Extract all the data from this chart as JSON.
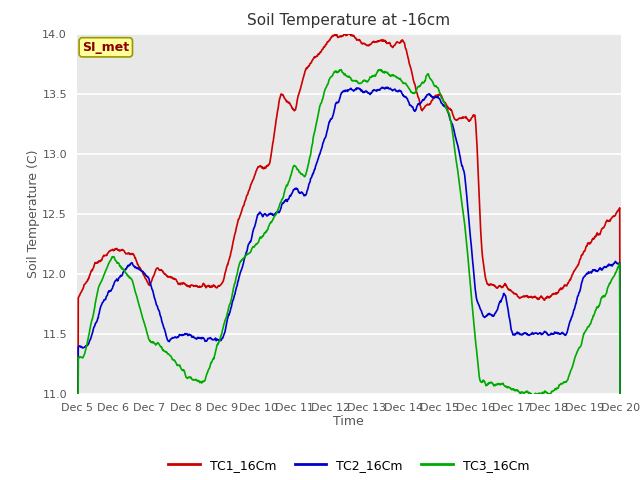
{
  "title": "Soil Temperature at -16cm",
  "xlabel": "Time",
  "ylabel": "Soil Temperature (C)",
  "ylim": [
    11.0,
    14.0
  ],
  "xlim": [
    0,
    15
  ],
  "yticks": [
    11.0,
    11.5,
    12.0,
    12.5,
    13.0,
    13.5,
    14.0
  ],
  "xtick_labels": [
    "Dec 5",
    "Dec 6",
    "Dec 7",
    "Dec 8",
    "Dec 9",
    "Dec 10",
    "Dec 11",
    "Dec 12",
    "Dec 13",
    "Dec 14",
    "Dec 15",
    "Dec 16",
    "Dec 17",
    "Dec 18",
    "Dec 19",
    "Dec 20"
  ],
  "plot_bg_color": "#e8e8e8",
  "outer_bg_color": "#ffffff",
  "grid_color": "#ffffff",
  "line_colors": [
    "#cc0000",
    "#0000cc",
    "#00aa00"
  ],
  "line_width": 1.2,
  "legend_labels": [
    "TC1_16Cm",
    "TC2_16Cm",
    "TC3_16Cm"
  ],
  "annotation_text": "SI_met",
  "annotation_color": "#8b0000",
  "annotation_bg": "#ffff99",
  "annotation_border": "#999900",
  "title_fontsize": 11,
  "tick_fontsize": 8,
  "label_fontsize": 9,
  "tick_color": "#555555"
}
